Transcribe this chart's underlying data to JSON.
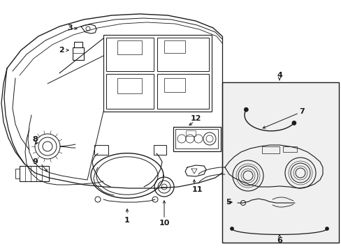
{
  "bg_color": "#ffffff",
  "line_color": "#1a1a1a",
  "box_bg": "#f5f5f5",
  "fig_w": 4.89,
  "fig_h": 3.6,
  "dpi": 100
}
